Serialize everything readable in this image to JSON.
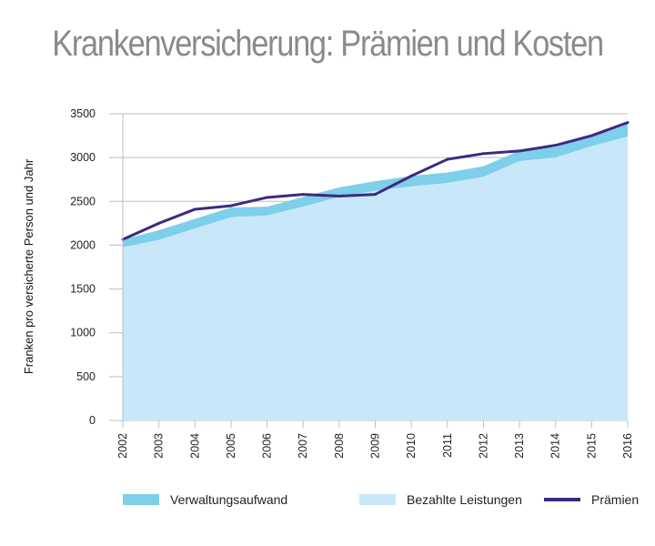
{
  "chart_data": {
    "type": "area",
    "title": "Krankenversicherung: Prämien und Kosten",
    "ylabel": "Franken pro versicherte Person und Jahr",
    "xlabel": "",
    "ylim": [
      0,
      3500
    ],
    "yticks": [
      0,
      500,
      1000,
      1500,
      2000,
      2500,
      3000,
      3500
    ],
    "grid": "horizontal",
    "legend_position": "bottom",
    "categories": [
      "2002",
      "2003",
      "2004",
      "2005",
      "2006",
      "2007",
      "2008",
      "2009",
      "2010",
      "2011",
      "2012",
      "2013",
      "2014",
      "2015",
      "2016"
    ],
    "series": [
      {
        "name": "Bezahlte Leistungen",
        "kind": "area",
        "color": "#c8e8fa",
        "values": [
          1975,
          2060,
          2190,
          2320,
          2340,
          2440,
          2550,
          2620,
          2670,
          2710,
          2780,
          2960,
          3000,
          3130,
          3240
        ]
      },
      {
        "name": "Verwaltungsaufwand",
        "kind": "stacked-area",
        "color": "#7ecfe9",
        "values": [
          90,
          110,
          110,
          110,
          100,
          110,
          110,
          110,
          120,
          120,
          120,
          120,
          120,
          120,
          150
        ]
      },
      {
        "name": "Prämien",
        "kind": "line",
        "color": "#3d2a80",
        "values": [
          2065,
          2250,
          2410,
          2450,
          2545,
          2580,
          2560,
          2580,
          2790,
          2980,
          3045,
          3075,
          3140,
          3250,
          3400
        ]
      }
    ]
  }
}
